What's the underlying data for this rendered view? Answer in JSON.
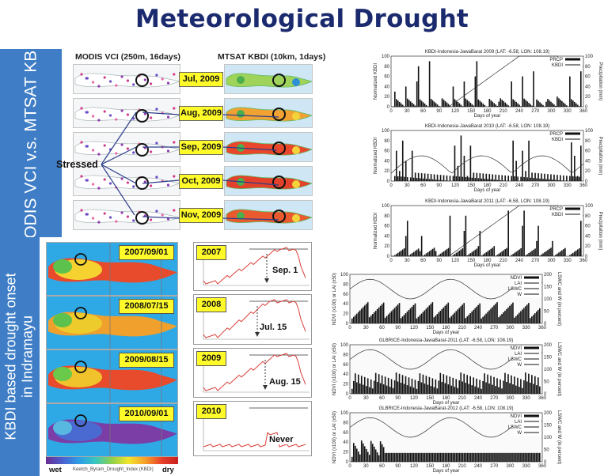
{
  "title": "Meteorological Drought",
  "side_labels": {
    "top": "MODIS VCI v.s. MTSAT KBDI",
    "bottom_line1": "KBDI based drought onset",
    "bottom_line2": "in Indramayu"
  },
  "top_panel": {
    "left_header": "MODIS VCI (250m, 16days)",
    "right_header": "MTSAT KBDI (10km, 1days)",
    "months": [
      "Jul, 2009",
      "Aug, 2009",
      "Sep, 2009",
      "Oct, 2009",
      "Nov, 2009"
    ],
    "stressed_label": "Stressed"
  },
  "bottom_panel": {
    "map_dates": [
      "2007/09/01",
      "2008/07/15",
      "2009/08/15",
      "2010/09/01"
    ],
    "years": [
      "2007",
      "2008",
      "2009",
      "2010"
    ],
    "onset": [
      "Sep. 1",
      "Jul. 15",
      "Aug. 15",
      "Never"
    ],
    "legend_wet": "wet",
    "legend_dry": "dry",
    "legend_caption": "Keetch_Byram_Drought_Index (KBDI)"
  },
  "kbdi_charts": [
    {
      "title": "KBDI-Indonesia-JawaBarat 2009 (LAT: -6.58, LON: 108.19)",
      "legend": [
        "PRCP",
        "KBDI"
      ]
    },
    {
      "title": "KBDI-Indonesia-JawaBarat 2010 (LAT: -6.58, LON: 108.19)",
      "legend": [
        "PRCP",
        "KBDI"
      ]
    },
    {
      "title": "KBDI-Indonesia-JawaBarat 2011 (LAT: -6.58, LON: 108.19)",
      "legend": [
        "PRCP",
        "KBDI"
      ]
    }
  ],
  "kbdi_axes": {
    "ylabel_left": "Normalized KBDI",
    "ylabel_right": "Precipitation (mm)",
    "xlabel": "Days of year",
    "yticks_left": [
      "0",
      "20",
      "40",
      "60",
      "80",
      "100"
    ],
    "yticks_right": [
      "0",
      "20",
      "40",
      "60",
      "80",
      "100"
    ],
    "xticks": [
      "0",
      "30",
      "60",
      "90",
      "120",
      "150",
      "180",
      "210",
      "240",
      "270",
      "300",
      "330",
      "360"
    ]
  },
  "glbrice_charts": [
    {
      "title": "",
      "legend": [
        "NDVI",
        "LAI",
        "LSWC",
        "W"
      ]
    },
    {
      "title": "GLBRICE-Indonesia-JawaBarat-2011 (LAT: -6.58, LON: 108.19)",
      "legend": [
        "NDVI",
        "LAI",
        "LSWC",
        "W"
      ]
    },
    {
      "title": "GLBRICE-Indonesia-JawaBarat-2012 (LAT: -6.58, LON: 108.19)",
      "legend": [
        "NDVI",
        "LAI",
        "LSWC",
        "W"
      ]
    }
  ],
  "glbrice_axes": {
    "ylabel_left": "NDVI (x100) or LAI (x50)",
    "ylabel_right": "LSWC and W (in percent)",
    "xlabel": "Days of year",
    "yticks_left": [
      "0",
      "20",
      "40",
      "60",
      "80",
      "100"
    ],
    "yticks_right": [
      "0",
      "50",
      "100",
      "150",
      "200"
    ],
    "xticks": [
      "0",
      "30",
      "60",
      "90",
      "120",
      "150",
      "180",
      "210",
      "240",
      "270",
      "300",
      "330",
      "360"
    ]
  },
  "colors": {
    "title": "#1b2a6e",
    "side_bar": "#3f7ec6",
    "tag": "#fffb2a",
    "kbdi_curve": "#d9403a"
  }
}
